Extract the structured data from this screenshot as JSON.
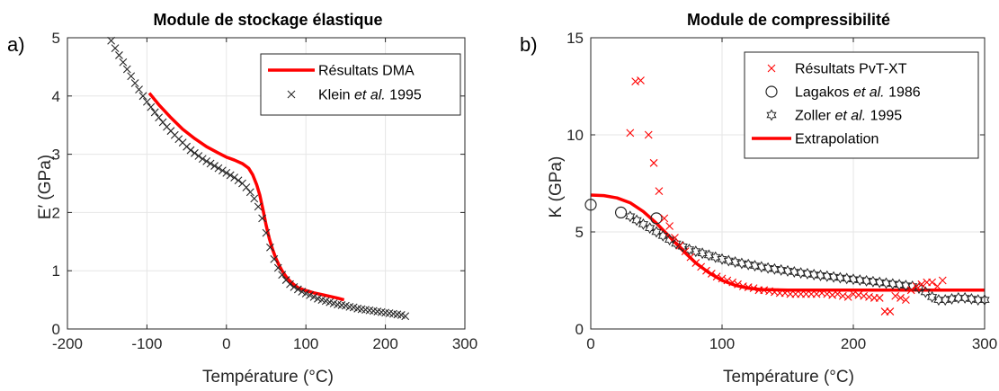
{
  "colors": {
    "red": "#ff0000",
    "black": "#262626",
    "grid": "#e6e6e6",
    "axis": "#262626"
  },
  "chart_data": [
    {
      "type": "line",
      "panel_label": "a)",
      "title": "Module de stockage élastique",
      "xlabel": "Température (°C)",
      "ylabel": "E′ (GPa)",
      "xlim": [
        -200,
        300
      ],
      "ylim": [
        0,
        5
      ],
      "xticks": [
        -200,
        -100,
        0,
        100,
        200,
        300
      ],
      "yticks": [
        0,
        1,
        2,
        3,
        4,
        5
      ],
      "grid": true,
      "legend_position": "top-right",
      "legend": [
        {
          "label": "Résultats DMA",
          "marker": "line",
          "color": "#ff0000"
        },
        {
          "label_parts": [
            "Klein ",
            "et al.",
            " 1995"
          ],
          "italic_index": 1,
          "marker": "x",
          "color": "#262626"
        }
      ],
      "series": [
        {
          "name": "Résultats DMA",
          "style": "line",
          "color": "#ff0000",
          "x": [
            -97,
            -85,
            -70,
            -55,
            -40,
            -25,
            -10,
            0,
            10,
            20,
            28,
            33,
            38,
            42,
            46,
            50,
            54,
            58,
            62,
            66,
            70,
            75,
            80,
            85,
            90,
            100,
            110,
            120,
            130,
            140,
            148
          ],
          "y": [
            4.05,
            3.85,
            3.63,
            3.43,
            3.27,
            3.13,
            3.02,
            2.95,
            2.9,
            2.84,
            2.76,
            2.65,
            2.48,
            2.3,
            2.05,
            1.78,
            1.55,
            1.37,
            1.22,
            1.1,
            1.0,
            0.9,
            0.82,
            0.76,
            0.71,
            0.66,
            0.62,
            0.59,
            0.56,
            0.53,
            0.5
          ]
        },
        {
          "name": "Klein et al. 1995",
          "style": "x",
          "color": "#262626",
          "x": [
            -145,
            -140,
            -135,
            -130,
            -125,
            -120,
            -115,
            -110,
            -105,
            -100,
            -95,
            -90,
            -85,
            -80,
            -75,
            -70,
            -65,
            -60,
            -55,
            -50,
            -45,
            -40,
            -35,
            -30,
            -25,
            -20,
            -15,
            -10,
            -5,
            0,
            5,
            10,
            15,
            20,
            25,
            30,
            35,
            40,
            45,
            50,
            55,
            60,
            65,
            70,
            75,
            80,
            85,
            90,
            95,
            100,
            105,
            110,
            115,
            120,
            125,
            130,
            135,
            140,
            145,
            150,
            155,
            160,
            165,
            170,
            175,
            180,
            185,
            190,
            195,
            200,
            205,
            210,
            215,
            220,
            225
          ],
          "y": [
            4.95,
            4.82,
            4.7,
            4.58,
            4.46,
            4.34,
            4.22,
            4.11,
            4.0,
            3.9,
            3.81,
            3.72,
            3.63,
            3.55,
            3.47,
            3.4,
            3.33,
            3.26,
            3.2,
            3.13,
            3.07,
            3.02,
            2.97,
            2.92,
            2.88,
            2.84,
            2.8,
            2.76,
            2.72,
            2.68,
            2.64,
            2.6,
            2.55,
            2.5,
            2.43,
            2.35,
            2.24,
            2.1,
            1.9,
            1.65,
            1.4,
            1.2,
            1.05,
            0.93,
            0.84,
            0.77,
            0.72,
            0.68,
            0.64,
            0.61,
            0.58,
            0.55,
            0.52,
            0.5,
            0.48,
            0.46,
            0.44,
            0.42,
            0.41,
            0.4,
            0.38,
            0.37,
            0.35,
            0.34,
            0.33,
            0.32,
            0.31,
            0.3,
            0.29,
            0.28,
            0.27,
            0.26,
            0.25,
            0.24,
            0.22
          ]
        }
      ]
    },
    {
      "type": "scatter",
      "panel_label": "b)",
      "title": "Module de compressibilité",
      "xlabel": "Température (°C)",
      "ylabel": "K (GPa)",
      "xlim": [
        0,
        300
      ],
      "ylim": [
        0,
        15
      ],
      "xticks": [
        0,
        100,
        200,
        300
      ],
      "yticks": [
        0,
        5,
        10,
        15
      ],
      "grid": true,
      "legend_position": "top-right",
      "legend": [
        {
          "label": "Résultats PvT-XT",
          "marker": "x",
          "color": "#ff0000"
        },
        {
          "label_parts": [
            "Lagakos ",
            "et al.",
            " 1986"
          ],
          "italic_index": 1,
          "marker": "circle",
          "color": "#262626"
        },
        {
          "label_parts": [
            "Zoller ",
            "et al.",
            " 1995"
          ],
          "italic_index": 1,
          "marker": "hexagram",
          "color": "#262626"
        },
        {
          "label": "Extrapolation",
          "marker": "line",
          "color": "#ff0000"
        }
      ],
      "series": [
        {
          "name": "Extrapolation",
          "style": "line",
          "color": "#ff0000",
          "x": [
            0,
            10,
            20,
            30,
            40,
            50,
            60,
            70,
            80,
            90,
            100,
            110,
            120,
            130,
            150,
            200,
            250,
            300
          ],
          "y": [
            6.9,
            6.87,
            6.75,
            6.5,
            6.05,
            5.45,
            4.75,
            4.05,
            3.4,
            2.9,
            2.5,
            2.25,
            2.1,
            2.03,
            2.0,
            2.0,
            2.0,
            2.0
          ]
        },
        {
          "name": "Zoller et al. 1995",
          "style": "hexagram",
          "color": "#262626",
          "x": [
            30,
            35,
            40,
            45,
            50,
            55,
            60,
            65,
            70,
            75,
            80,
            85,
            90,
            95,
            100,
            105,
            110,
            115,
            120,
            125,
            130,
            135,
            140,
            145,
            150,
            155,
            160,
            165,
            170,
            175,
            180,
            185,
            190,
            195,
            200,
            205,
            210,
            215,
            220,
            225,
            230,
            235,
            240,
            245,
            250,
            255,
            260,
            265,
            270,
            275,
            280,
            285,
            290,
            295,
            300
          ],
          "y": [
            5.8,
            5.6,
            5.4,
            5.2,
            5.0,
            4.8,
            4.6,
            4.4,
            4.25,
            4.1,
            4.0,
            3.9,
            3.8,
            3.7,
            3.6,
            3.52,
            3.45,
            3.38,
            3.32,
            3.26,
            3.2,
            3.14,
            3.09,
            3.04,
            2.99,
            2.94,
            2.89,
            2.85,
            2.8,
            2.76,
            2.72,
            2.68,
            2.64,
            2.6,
            2.56,
            2.52,
            2.48,
            2.44,
            2.4,
            2.36,
            2.32,
            2.28,
            2.24,
            2.2,
            2.1,
            1.9,
            1.65,
            1.5,
            1.5,
            1.55,
            1.6,
            1.6,
            1.55,
            1.5,
            1.5
          ]
        },
        {
          "name": "Lagakos et al. 1986",
          "style": "circle",
          "color": "#262626",
          "x": [
            0,
            23,
            50
          ],
          "y": [
            6.4,
            6.0,
            5.7
          ]
        },
        {
          "name": "Résultats PvT-XT",
          "style": "x",
          "color": "#ff0000",
          "x": [
            30,
            34,
            38,
            44,
            48,
            52,
            56,
            60,
            64,
            68,
            72,
            76,
            80,
            84,
            88,
            92,
            96,
            100,
            104,
            108,
            112,
            116,
            120,
            124,
            128,
            132,
            136,
            140,
            144,
            148,
            152,
            156,
            160,
            164,
            168,
            172,
            176,
            180,
            184,
            188,
            192,
            196,
            200,
            204,
            208,
            212,
            216,
            220,
            224,
            228,
            232,
            236,
            240,
            244,
            248,
            252,
            256,
            260,
            264,
            268
          ],
          "y": [
            10.1,
            12.75,
            12.8,
            10.0,
            8.55,
            7.1,
            5.7,
            5.3,
            4.7,
            4.3,
            4.0,
            3.7,
            3.4,
            3.2,
            3.0,
            2.85,
            2.7,
            2.6,
            2.5,
            2.4,
            2.3,
            2.2,
            2.15,
            2.1,
            2.0,
            2.0,
            1.95,
            1.9,
            1.85,
            1.85,
            1.8,
            1.8,
            1.8,
            1.8,
            1.8,
            1.8,
            1.85,
            1.8,
            1.75,
            1.8,
            1.7,
            1.65,
            1.8,
            1.75,
            1.7,
            1.65,
            1.6,
            1.6,
            0.9,
            0.9,
            1.7,
            1.6,
            1.5,
            2.0,
            2.2,
            2.3,
            2.4,
            2.4,
            2.2,
            2.5
          ]
        }
      ]
    }
  ]
}
